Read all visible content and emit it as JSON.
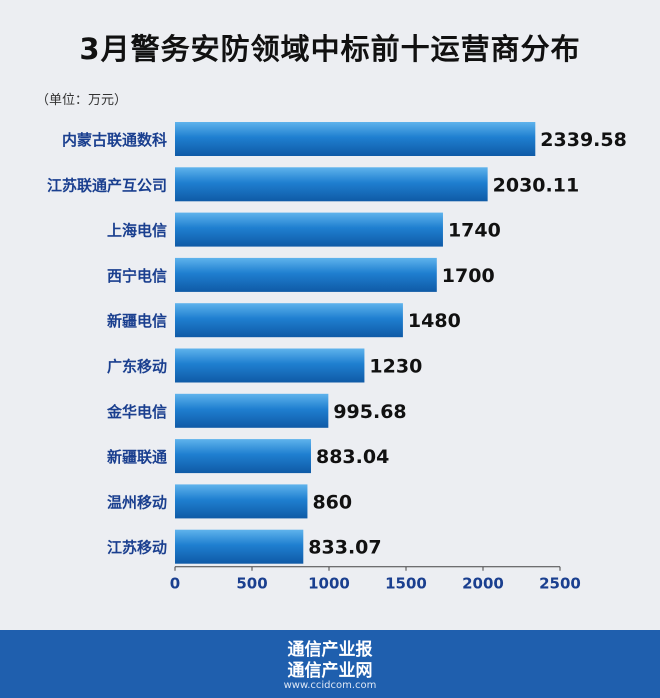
{
  "title": "3月警务安防领域中标前十运营商分布",
  "unit_label": "（单位：万元）",
  "footer": {
    "line1": "通信产业报",
    "line2": "通信产业网",
    "url": "www.ccidcom.com"
  },
  "colors": {
    "bar_top": "#5fb3ec",
    "bar_mid": "#1f7fd0",
    "bar_bottom": "#0f5aa6",
    "category_text": "#1a3f8f",
    "value_text": "#111111",
    "footer_bg": "#1f5fae"
  },
  "chart_data": {
    "type": "bar",
    "orientation": "horizontal",
    "categories": [
      "内蒙古联通数科",
      "江苏联通产互公司",
      "上海电信",
      "西宁电信",
      "新疆电信",
      "广东移动",
      "金华电信",
      "新疆联通",
      "温州移动",
      "江苏移动"
    ],
    "values": [
      2339.58,
      2030.11,
      1740,
      1700,
      1480,
      1230,
      995.68,
      883.04,
      860,
      833.07
    ],
    "value_labels": [
      "2339.58",
      "2030.11",
      "1740",
      "1700",
      "1480",
      "1230",
      "995.68",
      "883.04",
      "860",
      "833.07"
    ],
    "xlim": [
      0,
      2500
    ],
    "x_ticks": [
      "0",
      "500",
      "1000",
      "1500",
      "2000",
      "2500"
    ],
    "title": "3月警务安防领域中标前十运营商分布",
    "xlabel": "",
    "ylabel": "",
    "grid": false,
    "legend": "none"
  }
}
